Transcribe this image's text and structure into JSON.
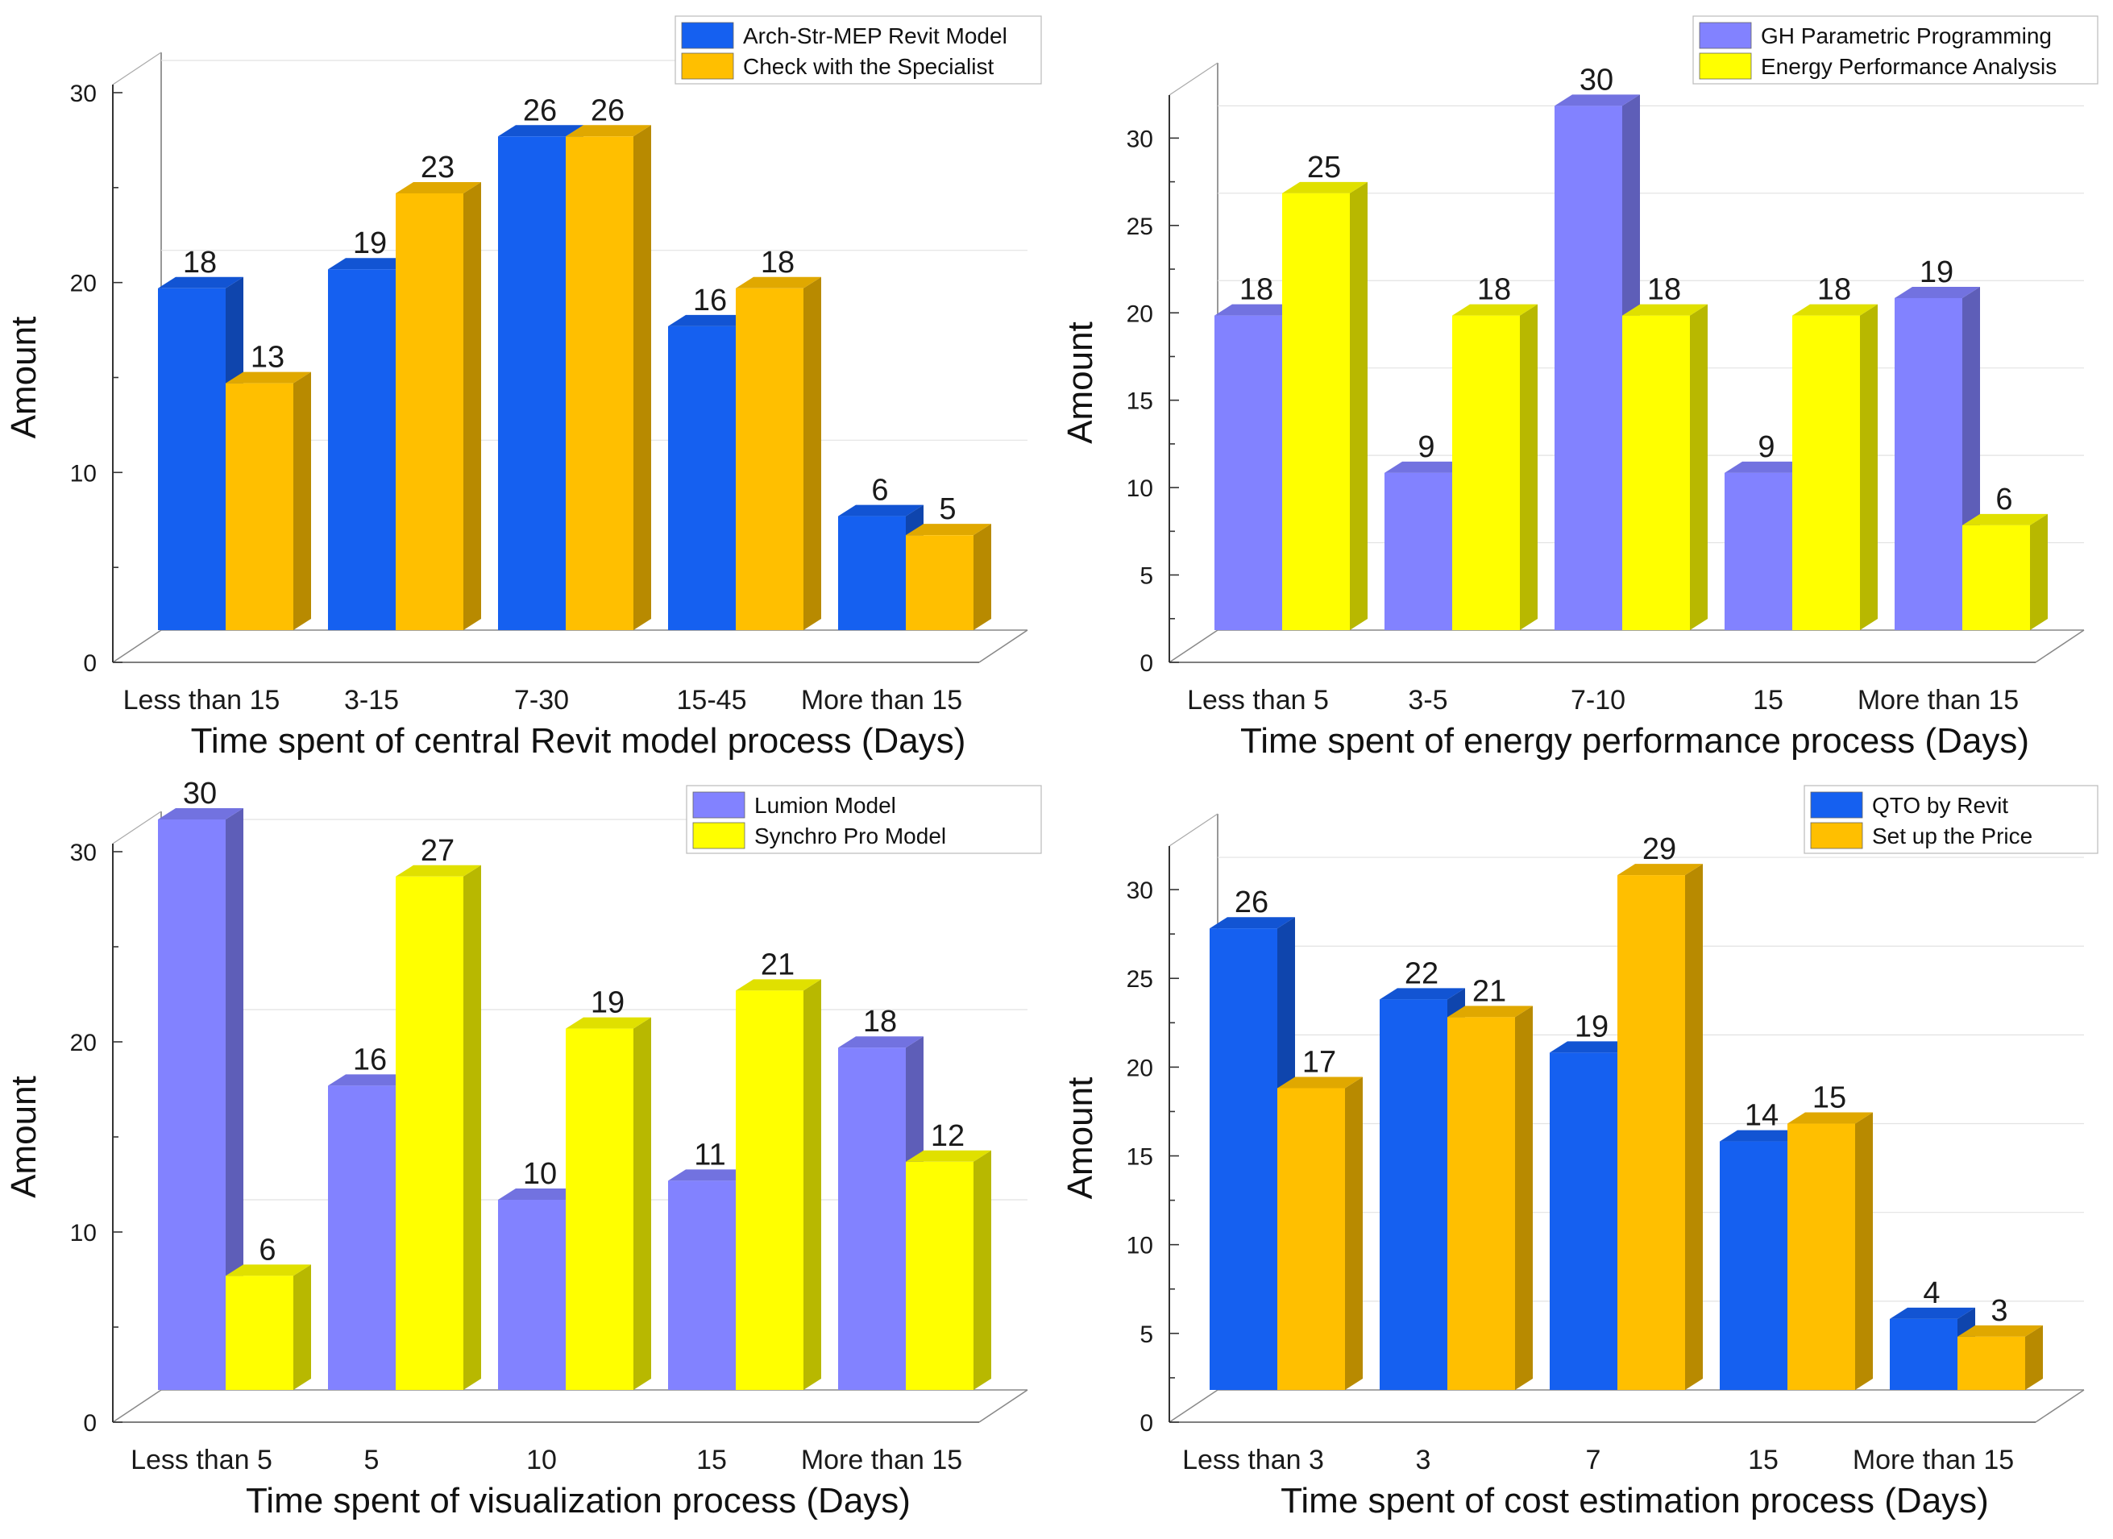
{
  "chart_data": [
    {
      "type": "bar",
      "categories": [
        "Less than 15",
        "3-15",
        "7-30",
        "15-45",
        "More than 15"
      ],
      "series": [
        {
          "name": "Arch-Str-MEP Revit Model",
          "values": [
            18,
            19,
            26,
            16,
            6
          ],
          "color": "#1560f0"
        },
        {
          "name": "Check with the Specialist",
          "values": [
            13,
            23,
            26,
            18,
            5
          ],
          "color": "#ffbf00"
        }
      ],
      "yticks": [
        0,
        10,
        20,
        30
      ],
      "ylim": [
        0,
        30
      ],
      "xlabel": "Time spent of central Revit model process (Days)",
      "ylabel": "Amount",
      "legend_position": "top-right"
    },
    {
      "type": "bar",
      "categories": [
        "Less than 5",
        "3-5",
        "7-10",
        "15",
        "More than 15"
      ],
      "series": [
        {
          "name": "GH Parametric Programming",
          "values": [
            18,
            9,
            30,
            9,
            19
          ],
          "color": "#8282ff"
        },
        {
          "name": "Energy Performance Analysis",
          "values": [
            25,
            18,
            18,
            18,
            6
          ],
          "color": "#ffff00"
        }
      ],
      "yticks": [
        0,
        5,
        10,
        15,
        20,
        25,
        30
      ],
      "ylim": [
        0,
        32
      ],
      "xlabel": "Time spent of energy performance process (Days)",
      "ylabel": "Amount",
      "legend_position": "top-right"
    },
    {
      "type": "bar",
      "categories": [
        "Less than 5",
        "5",
        "10",
        "15",
        "More than 15"
      ],
      "series": [
        {
          "name": "Lumion Model",
          "values": [
            30,
            16,
            10,
            11,
            18
          ],
          "color": "#8282ff"
        },
        {
          "name": "Synchro Pro Model",
          "values": [
            6,
            27,
            19,
            21,
            12
          ],
          "color": "#ffff00"
        }
      ],
      "yticks": [
        0,
        10,
        20,
        30
      ],
      "ylim": [
        0,
        30
      ],
      "xlabel": "Time spent of visualization process (Days)",
      "ylabel": "Amount",
      "legend_position": "top-right"
    },
    {
      "type": "bar",
      "categories": [
        "Less than 3",
        "3",
        "7",
        "15",
        "More than 15"
      ],
      "series": [
        {
          "name": "QTO by Revit",
          "values": [
            26,
            22,
            19,
            14,
            4
          ],
          "color": "#1560f0"
        },
        {
          "name": "Set up the Price",
          "values": [
            17,
            21,
            29,
            15,
            3
          ],
          "color": "#ffbf00"
        }
      ],
      "yticks": [
        0,
        5,
        10,
        15,
        20,
        25,
        30
      ],
      "ylim": [
        0,
        32
      ],
      "xlabel": "Time spent of cost estimation process (Days)",
      "ylabel": "Amount",
      "legend_position": "top-right"
    }
  ]
}
